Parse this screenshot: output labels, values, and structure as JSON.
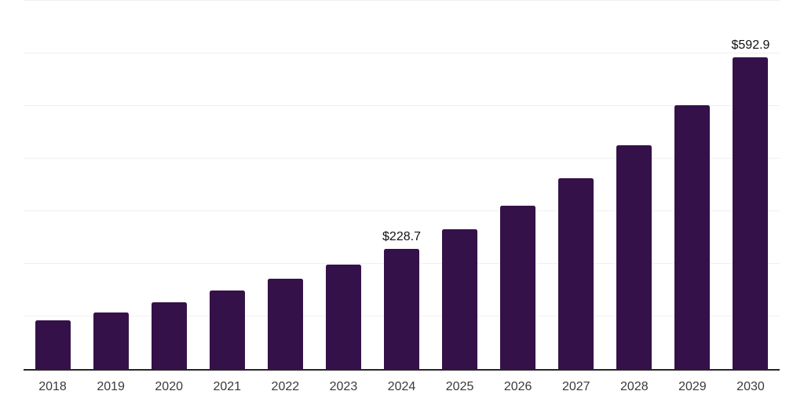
{
  "colors": {
    "background": "#ffffff",
    "bar": "#351149",
    "gridline": "#f0f0f0",
    "axis_line": "#262626",
    "tick_label": "#3a3a3a",
    "data_label": "#111111"
  },
  "chart_data": {
    "type": "bar",
    "title": "",
    "xlabel": "",
    "ylabel": "",
    "categories": [
      "2018",
      "2019",
      "2020",
      "2021",
      "2022",
      "2023",
      "2024",
      "2025",
      "2026",
      "2027",
      "2028",
      "2029",
      "2030"
    ],
    "values": [
      92.4,
      108.2,
      126.7,
      148.9,
      171.4,
      198.3,
      228.7,
      265.2,
      310.0,
      362.1,
      426.1,
      502.1,
      592.9
    ],
    "bar_labels": [
      "",
      "",
      "",
      "",
      "",
      "",
      "$228.7",
      "",
      "",
      "",
      "",
      "",
      "$592.9"
    ],
    "labeled_points": [
      {
        "category": "2024",
        "label": "$228.7",
        "value": 228.7
      },
      {
        "category": "2030",
        "label": "$592.9",
        "value": 592.9
      }
    ],
    "ylim": [
      0,
      700
    ],
    "gridline_step": 100,
    "grid": "horizontal",
    "y_tick_labels_visible": false,
    "legend_position": "none"
  }
}
